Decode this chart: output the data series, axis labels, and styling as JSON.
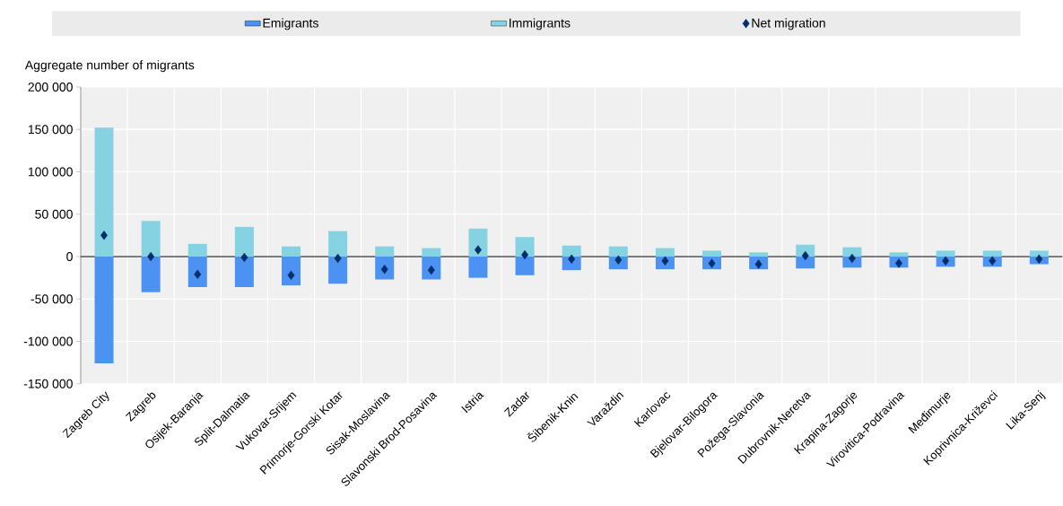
{
  "chart_data": {
    "type": "bar",
    "ylabel": "Aggregate number of migrants",
    "categories": [
      "Zagreb City",
      "Zagreb",
      "Osijek-Baranja",
      "Split-Dalmatia",
      "Vukovar-Srijem",
      "Primorje-Gorski Kotar",
      "Sisak-Moslavina",
      "Slavonski Brod-Posavina",
      "Istria",
      "Zadar",
      "Šibenik-Knin",
      "Varaždin",
      "Karlovac",
      "Bjelovar-Bilogora",
      "Požega-Slavonia",
      "Dubrovnik-Neretva",
      "Krapina-Zagorje",
      "Virovitica-Podravina",
      "Međimurje",
      "Koprivnica-Križevci",
      "Lika-Senj"
    ],
    "series": [
      {
        "name": "Emigrants",
        "color": "#4b92f2",
        "values": [
          -126000,
          -42000,
          -36000,
          -36000,
          -34000,
          -32000,
          -27000,
          -27000,
          -25000,
          -22000,
          -16000,
          -15000,
          -15000,
          -15000,
          -15000,
          -14000,
          -13000,
          -13000,
          -12000,
          -12000,
          -9000
        ]
      },
      {
        "name": "Immigrants",
        "color": "#85d2e2",
        "values": [
          152000,
          42000,
          15000,
          35000,
          12000,
          30000,
          12000,
          10000,
          33000,
          23000,
          13000,
          12000,
          10000,
          7000,
          5000,
          14000,
          11000,
          5000,
          7000,
          7000,
          7000
        ]
      },
      {
        "name": "Net migration",
        "type": "scatter",
        "marker": "diamond",
        "color": "#002f6c",
        "values": [
          25000,
          0,
          -21000,
          -1000,
          -22000,
          -2000,
          -15000,
          -16000,
          8000,
          2000,
          -3000,
          -4000,
          -5000,
          -8000,
          -9000,
          1000,
          -2000,
          -8000,
          -5000,
          -5000,
          -3000
        ]
      }
    ],
    "ylim": [
      -150000,
      200000
    ],
    "yticks": [
      {
        "value": -150000,
        "label": "-150 000"
      },
      {
        "value": -100000,
        "label": "-100 000"
      },
      {
        "value": -50000,
        "label": "-50 000"
      },
      {
        "value": 0,
        "label": "0"
      },
      {
        "value": 50000,
        "label": "50 000"
      },
      {
        "value": 100000,
        "label": "100 000"
      },
      {
        "value": 150000,
        "label": "150 000"
      },
      {
        "value": 200000,
        "label": "200 000"
      }
    ],
    "grid": true,
    "stacked": true,
    "legend": "top"
  }
}
